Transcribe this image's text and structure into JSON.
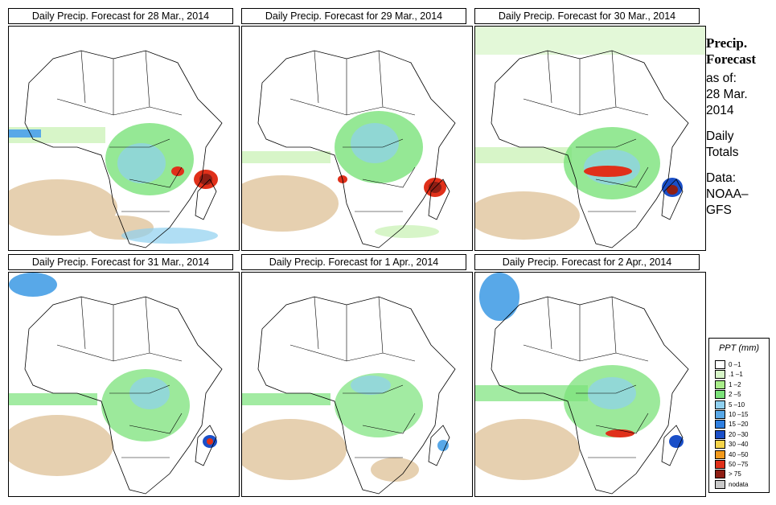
{
  "panels": [
    {
      "title": "Daily Precip. Forecast for  28 Mar., 2014"
    },
    {
      "title": "Daily Precip. Forecast for  29 Mar., 2014"
    },
    {
      "title": "Daily Precip. Forecast for  30 Mar., 2014"
    },
    {
      "title": "Daily Precip. Forecast for  31 Mar., 2014"
    },
    {
      "title": "Daily Precip. Forecast for  1 Apr., 2014"
    },
    {
      "title": "Daily Precip. Forecast for  2 Apr., 2014"
    }
  ],
  "sidebar": {
    "heading1": "Precip.",
    "heading2": "Forecast",
    "asof": "as of:",
    "date1": "28 Mar.",
    "date2": "2014",
    "type1": "Daily",
    "type2": "Totals",
    "data1": "Data:",
    "data2": "NOAA–",
    "data3": "GFS"
  },
  "legend": {
    "title": "PPT (mm)",
    "items": [
      {
        "label": "0 –1",
        "color": "#ffffff"
      },
      {
        "label": ".1 –1",
        "color": "#d7f5c8"
      },
      {
        "label": "1 –2",
        "color": "#a9ee8a"
      },
      {
        "label": "2 –5",
        "color": "#7be27a"
      },
      {
        "label": "5 –10",
        "color": "#8fd0f0"
      },
      {
        "label": "10 –15",
        "color": "#58a8e8"
      },
      {
        "label": "15 –20",
        "color": "#2f7fe0"
      },
      {
        "label": "20 –30",
        "color": "#1a4fc8"
      },
      {
        "label": "30 –40",
        "color": "#f6d44a"
      },
      {
        "label": "40 –50",
        "color": "#f39a1c"
      },
      {
        "label": "50 –75",
        "color": "#e0301a"
      },
      {
        "label": "> 75",
        "color": "#8e1e14"
      },
      {
        "label": "nodata",
        "color": "#c8c8c8"
      }
    ]
  },
  "colors": {
    "dry": "#e6d0b0",
    "light": "#d7f5c8",
    "moderate": "#7be27a",
    "wet": "#58a8e8",
    "heavy": "#e0301a"
  }
}
